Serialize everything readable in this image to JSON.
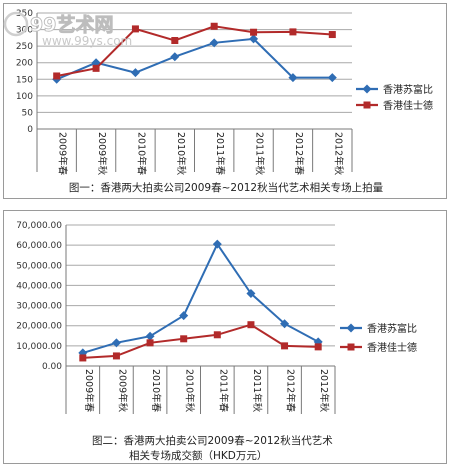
{
  "chart_data": [
    {
      "type": "line",
      "title": "图一：香港两大拍卖公司2009春~2012秋当代艺术相关专场上拍量",
      "categories": [
        "2009年春",
        "2009年秋",
        "2010年春",
        "2010年秋",
        "2011年春",
        "2011年秋",
        "2012年春",
        "2012年秋"
      ],
      "ylim": [
        0,
        350
      ],
      "yticks": [
        "0",
        "50",
        "100",
        "150",
        "200",
        "250",
        "300",
        "350"
      ],
      "grid": true,
      "legend_position": "right",
      "series": [
        {
          "name": "香港苏富比",
          "color": "#2f6db4",
          "marker": "diamond",
          "values": [
            150,
            200,
            170,
            218,
            260,
            272,
            155,
            155
          ]
        },
        {
          "name": "香港佳士德",
          "color": "#b22a2a",
          "marker": "square",
          "values": [
            160,
            183,
            302,
            267,
            310,
            292,
            293,
            285
          ]
        }
      ]
    },
    {
      "type": "line",
      "title": "图二：香港两大拍卖公司2009春~2012秋当代艺术相关专场成交额（HKD万元）",
      "title_lines": [
        "图二：香港两大拍卖公司2009春~2012秋当代艺术",
        "相关专场成交额（HKD万元）"
      ],
      "categories": [
        "2009年春",
        "2009年秋",
        "2010年春",
        "2010年秋",
        "2011年春",
        "2011年秋",
        "2012年春",
        "2012年秋"
      ],
      "ylim": [
        0,
        70000
      ],
      "yticks": [
        "0.00",
        "10,000.00",
        "20,000.00",
        "30,000.00",
        "40,000.00",
        "50,000.00",
        "60,000.00",
        "70,000.00"
      ],
      "grid": true,
      "legend_position": "right",
      "series": [
        {
          "name": "香港苏富比",
          "color": "#2f6db4",
          "marker": "diamond",
          "values": [
            6500,
            11500,
            14800,
            25000,
            60500,
            36000,
            21000,
            12000
          ]
        },
        {
          "name": "香港佳士德",
          "color": "#b22a2a",
          "marker": "square",
          "values": [
            4000,
            5000,
            11500,
            13500,
            15500,
            20500,
            10000,
            9500
          ]
        }
      ]
    }
  ],
  "watermark": {
    "text": "99艺术网",
    "url": "www.99ys.com"
  }
}
